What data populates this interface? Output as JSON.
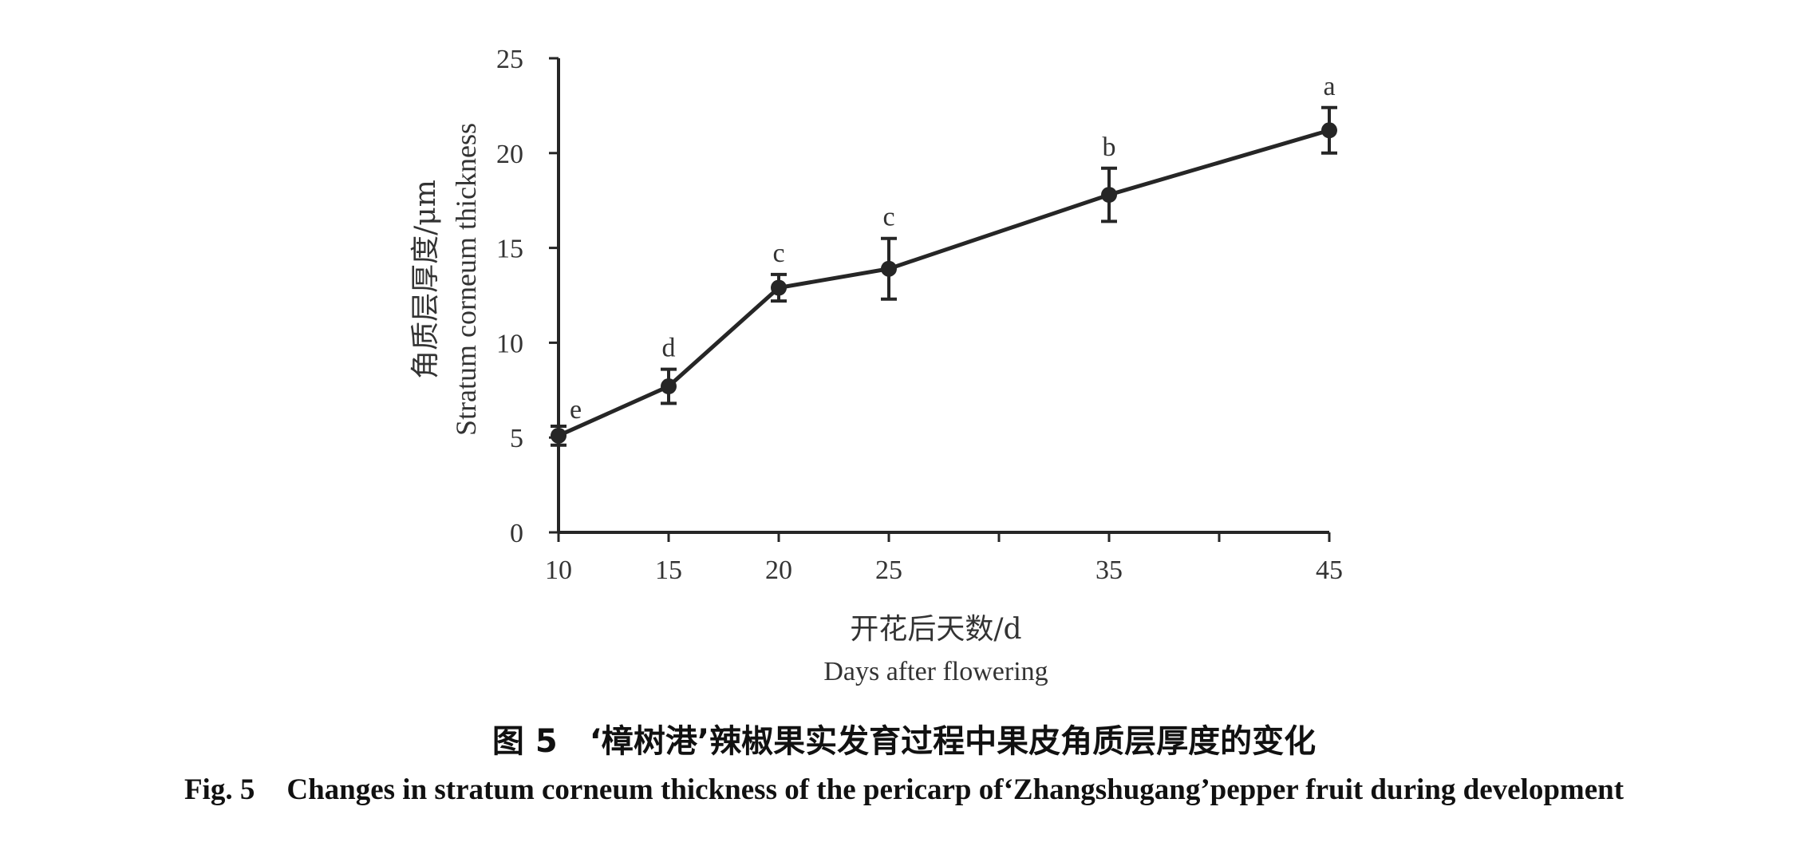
{
  "chart_data": {
    "type": "line",
    "x": [
      10,
      15,
      20,
      25,
      35,
      45
    ],
    "x_tick_labels": [
      "10",
      "15",
      "20",
      "25",
      "35",
      "45"
    ],
    "series": [
      {
        "values": [
          5.1,
          7.7,
          12.9,
          13.9,
          17.8,
          21.2
        ],
        "error": [
          0.5,
          0.9,
          0.7,
          1.6,
          1.4,
          1.2
        ],
        "significance_labels": [
          "e",
          "d",
          "c",
          "c",
          "b",
          "a"
        ]
      }
    ],
    "ylim": [
      0,
      25
    ],
    "y_ticks": [
      0,
      5,
      10,
      15,
      20,
      25
    ],
    "xlabel_cn": "开花后天数/d",
    "xlabel_en": "Days after flowering",
    "ylabel_cn": "角质层厚度/μm",
    "ylabel_en": "Stratum corneum thickness",
    "grid": false,
    "line_color": "#262626"
  },
  "caption": {
    "cn_label": "图 5",
    "cn_text": "‘樟树港’辣椒果实发育过程中果皮角质层厚度的变化",
    "en_label": "Fig. 5",
    "en_text": "Changes in stratum corneum thickness of the pericarp of‘Zhangshugang’pepper fruit during development"
  }
}
